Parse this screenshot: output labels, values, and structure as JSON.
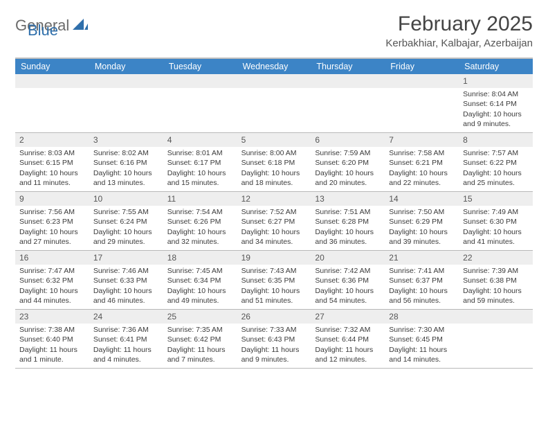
{
  "logo": {
    "part1": "General",
    "part2": "Blue"
  },
  "title": "February 2025",
  "location": "Kerbakhiar, Kalbajar, Azerbaijan",
  "colors": {
    "header_bar": "#3c84c6",
    "header_text": "#ffffff",
    "daynum_bg": "#eeeeee",
    "rule": "#b8b8b8",
    "logo_gray": "#6b6b6b",
    "logo_blue": "#2f6fab"
  },
  "weekdays": [
    "Sunday",
    "Monday",
    "Tuesday",
    "Wednesday",
    "Thursday",
    "Friday",
    "Saturday"
  ],
  "weeks": [
    [
      null,
      null,
      null,
      null,
      null,
      null,
      {
        "n": "1",
        "sunrise": "Sunrise: 8:04 AM",
        "sunset": "Sunset: 6:14 PM",
        "daylight": "Daylight: 10 hours and 9 minutes."
      }
    ],
    [
      {
        "n": "2",
        "sunrise": "Sunrise: 8:03 AM",
        "sunset": "Sunset: 6:15 PM",
        "daylight": "Daylight: 10 hours and 11 minutes."
      },
      {
        "n": "3",
        "sunrise": "Sunrise: 8:02 AM",
        "sunset": "Sunset: 6:16 PM",
        "daylight": "Daylight: 10 hours and 13 minutes."
      },
      {
        "n": "4",
        "sunrise": "Sunrise: 8:01 AM",
        "sunset": "Sunset: 6:17 PM",
        "daylight": "Daylight: 10 hours and 15 minutes."
      },
      {
        "n": "5",
        "sunrise": "Sunrise: 8:00 AM",
        "sunset": "Sunset: 6:18 PM",
        "daylight": "Daylight: 10 hours and 18 minutes."
      },
      {
        "n": "6",
        "sunrise": "Sunrise: 7:59 AM",
        "sunset": "Sunset: 6:20 PM",
        "daylight": "Daylight: 10 hours and 20 minutes."
      },
      {
        "n": "7",
        "sunrise": "Sunrise: 7:58 AM",
        "sunset": "Sunset: 6:21 PM",
        "daylight": "Daylight: 10 hours and 22 minutes."
      },
      {
        "n": "8",
        "sunrise": "Sunrise: 7:57 AM",
        "sunset": "Sunset: 6:22 PM",
        "daylight": "Daylight: 10 hours and 25 minutes."
      }
    ],
    [
      {
        "n": "9",
        "sunrise": "Sunrise: 7:56 AM",
        "sunset": "Sunset: 6:23 PM",
        "daylight": "Daylight: 10 hours and 27 minutes."
      },
      {
        "n": "10",
        "sunrise": "Sunrise: 7:55 AM",
        "sunset": "Sunset: 6:24 PM",
        "daylight": "Daylight: 10 hours and 29 minutes."
      },
      {
        "n": "11",
        "sunrise": "Sunrise: 7:54 AM",
        "sunset": "Sunset: 6:26 PM",
        "daylight": "Daylight: 10 hours and 32 minutes."
      },
      {
        "n": "12",
        "sunrise": "Sunrise: 7:52 AM",
        "sunset": "Sunset: 6:27 PM",
        "daylight": "Daylight: 10 hours and 34 minutes."
      },
      {
        "n": "13",
        "sunrise": "Sunrise: 7:51 AM",
        "sunset": "Sunset: 6:28 PM",
        "daylight": "Daylight: 10 hours and 36 minutes."
      },
      {
        "n": "14",
        "sunrise": "Sunrise: 7:50 AM",
        "sunset": "Sunset: 6:29 PM",
        "daylight": "Daylight: 10 hours and 39 minutes."
      },
      {
        "n": "15",
        "sunrise": "Sunrise: 7:49 AM",
        "sunset": "Sunset: 6:30 PM",
        "daylight": "Daylight: 10 hours and 41 minutes."
      }
    ],
    [
      {
        "n": "16",
        "sunrise": "Sunrise: 7:47 AM",
        "sunset": "Sunset: 6:32 PM",
        "daylight": "Daylight: 10 hours and 44 minutes."
      },
      {
        "n": "17",
        "sunrise": "Sunrise: 7:46 AM",
        "sunset": "Sunset: 6:33 PM",
        "daylight": "Daylight: 10 hours and 46 minutes."
      },
      {
        "n": "18",
        "sunrise": "Sunrise: 7:45 AM",
        "sunset": "Sunset: 6:34 PM",
        "daylight": "Daylight: 10 hours and 49 minutes."
      },
      {
        "n": "19",
        "sunrise": "Sunrise: 7:43 AM",
        "sunset": "Sunset: 6:35 PM",
        "daylight": "Daylight: 10 hours and 51 minutes."
      },
      {
        "n": "20",
        "sunrise": "Sunrise: 7:42 AM",
        "sunset": "Sunset: 6:36 PM",
        "daylight": "Daylight: 10 hours and 54 minutes."
      },
      {
        "n": "21",
        "sunrise": "Sunrise: 7:41 AM",
        "sunset": "Sunset: 6:37 PM",
        "daylight": "Daylight: 10 hours and 56 minutes."
      },
      {
        "n": "22",
        "sunrise": "Sunrise: 7:39 AM",
        "sunset": "Sunset: 6:38 PM",
        "daylight": "Daylight: 10 hours and 59 minutes."
      }
    ],
    [
      {
        "n": "23",
        "sunrise": "Sunrise: 7:38 AM",
        "sunset": "Sunset: 6:40 PM",
        "daylight": "Daylight: 11 hours and 1 minute."
      },
      {
        "n": "24",
        "sunrise": "Sunrise: 7:36 AM",
        "sunset": "Sunset: 6:41 PM",
        "daylight": "Daylight: 11 hours and 4 minutes."
      },
      {
        "n": "25",
        "sunrise": "Sunrise: 7:35 AM",
        "sunset": "Sunset: 6:42 PM",
        "daylight": "Daylight: 11 hours and 7 minutes."
      },
      {
        "n": "26",
        "sunrise": "Sunrise: 7:33 AM",
        "sunset": "Sunset: 6:43 PM",
        "daylight": "Daylight: 11 hours and 9 minutes."
      },
      {
        "n": "27",
        "sunrise": "Sunrise: 7:32 AM",
        "sunset": "Sunset: 6:44 PM",
        "daylight": "Daylight: 11 hours and 12 minutes."
      },
      {
        "n": "28",
        "sunrise": "Sunrise: 7:30 AM",
        "sunset": "Sunset: 6:45 PM",
        "daylight": "Daylight: 11 hours and 14 minutes."
      },
      null
    ]
  ]
}
